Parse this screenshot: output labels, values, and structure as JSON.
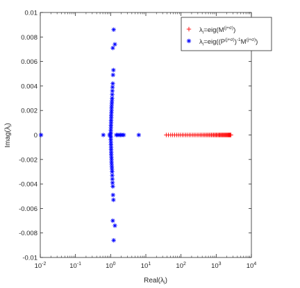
{
  "chart_data": {
    "type": "scatter",
    "title": "",
    "xlabel": "Real(λ_i)",
    "ylabel": "Imag(λ_i)",
    "xscale": "log",
    "xlim": [
      0.01,
      10000
    ],
    "ylim": [
      -0.01,
      0.01
    ],
    "grid": false,
    "legend_position": "top-right",
    "x_ticks": [
      {
        "value": 0.01,
        "base": "10",
        "exp": "-2"
      },
      {
        "value": 0.1,
        "base": "10",
        "exp": "-1"
      },
      {
        "value": 1,
        "base": "10",
        "exp": "0"
      },
      {
        "value": 10,
        "base": "10",
        "exp": "1"
      },
      {
        "value": 100,
        "base": "10",
        "exp": "2"
      },
      {
        "value": 1000,
        "base": "10",
        "exp": "3"
      },
      {
        "value": 10000,
        "base": "10",
        "exp": "4"
      }
    ],
    "y_ticks": [
      {
        "value": 0.01,
        "label": "0.01"
      },
      {
        "value": 0.008,
        "label": "0.008"
      },
      {
        "value": 0.006,
        "label": "0.006"
      },
      {
        "value": 0.004,
        "label": "0.004"
      },
      {
        "value": 0.002,
        "label": "0.002"
      },
      {
        "value": 0,
        "label": "0"
      },
      {
        "value": -0.002,
        "label": "-0.002"
      },
      {
        "value": -0.004,
        "label": "-0.004"
      },
      {
        "value": -0.006,
        "label": "-0.006"
      },
      {
        "value": -0.008,
        "label": "-0.008"
      },
      {
        "value": -0.01,
        "label": "-0.01"
      }
    ],
    "series": [
      {
        "name": "λ_i=eig(M^(j+σ))",
        "legend_parts": {
          "lam": "λ",
          "sub": "i",
          "eq": "=eig(M",
          "sup": "(j+σ)",
          "close": ")"
        },
        "marker": "+",
        "color": "#ff0000",
        "points": [
          [
            38,
            0
          ],
          [
            44,
            0
          ],
          [
            51,
            0
          ],
          [
            58,
            0
          ],
          [
            66,
            0
          ],
          [
            75,
            0
          ],
          [
            85,
            0
          ],
          [
            96,
            0
          ],
          [
            108,
            0
          ],
          [
            121,
            0
          ],
          [
            136,
            0
          ],
          [
            152,
            0
          ],
          [
            170,
            0
          ],
          [
            190,
            0
          ],
          [
            212,
            0
          ],
          [
            236,
            0
          ],
          [
            262,
            0
          ],
          [
            290,
            0
          ],
          [
            320,
            0
          ],
          [
            352,
            0
          ],
          [
            386,
            0
          ],
          [
            422,
            0
          ],
          [
            460,
            0
          ],
          [
            500,
            0
          ],
          [
            542,
            0
          ],
          [
            586,
            0
          ],
          [
            632,
            0
          ],
          [
            680,
            0
          ],
          [
            730,
            0
          ],
          [
            782,
            0
          ],
          [
            836,
            0
          ],
          [
            892,
            0
          ],
          [
            950,
            0
          ],
          [
            1010,
            0
          ],
          [
            1072,
            0
          ],
          [
            1136,
            0
          ],
          [
            1202,
            0
          ],
          [
            1270,
            0
          ],
          [
            1340,
            0
          ],
          [
            1412,
            0
          ],
          [
            1486,
            0
          ],
          [
            1562,
            0
          ],
          [
            1640,
            0
          ],
          [
            1720,
            0
          ],
          [
            1802,
            0
          ],
          [
            1886,
            0
          ],
          [
            1972,
            0
          ],
          [
            2060,
            0
          ],
          [
            2150,
            0
          ],
          [
            2242,
            0
          ],
          [
            2336,
            0
          ],
          [
            2432,
            0
          ],
          [
            2530,
            0
          ],
          [
            2630,
            0
          ]
        ]
      },
      {
        "name": "λ_i=eig((P^(j+σ))^-1 M^(j+σ))",
        "legend_parts": {
          "lam": "λ",
          "sub": "i",
          "eq": "=eig((P",
          "sup": "(j+σ)",
          "mid": ")",
          "sup2": "-1",
          "m": "M",
          "sup3": "(j+σ)",
          "close": ")"
        },
        "marker": "*",
        "color": "#0000ff",
        "points": [
          [
            0.0105,
            0
          ],
          [
            0.62,
            0
          ],
          [
            0.93,
            0
          ],
          [
            1.45,
            0
          ],
          [
            1.6,
            0
          ],
          [
            1.75,
            0
          ],
          [
            1.9,
            0
          ],
          [
            2.1,
            0
          ],
          [
            2.35,
            0
          ],
          [
            6.3,
            0
          ],
          [
            1.22,
            0.0086
          ],
          [
            1.32,
            0.0074
          ],
          [
            1.15,
            0.0071
          ],
          [
            1.2,
            0.0053
          ],
          [
            1.17,
            0.0049
          ],
          [
            1.15,
            0.0042
          ],
          [
            1.13,
            0.0039
          ],
          [
            1.12,
            0.0036
          ],
          [
            1.11,
            0.0033
          ],
          [
            1.1,
            0.003
          ],
          [
            1.09,
            0.0028
          ],
          [
            1.08,
            0.0026
          ],
          [
            1.07,
            0.0024
          ],
          [
            1.06,
            0.0022
          ],
          [
            1.06,
            0.002
          ],
          [
            1.05,
            0.0018
          ],
          [
            1.04,
            0.0016
          ],
          [
            1.04,
            0.0014
          ],
          [
            1.03,
            0.0012
          ],
          [
            1.03,
            0.001
          ],
          [
            1.02,
            0.0008
          ],
          [
            1.02,
            0.0006
          ],
          [
            1.01,
            0.0004
          ],
          [
            1.01,
            0.0002
          ],
          [
            1.0,
            0.0001
          ],
          [
            1.22,
            -0.0086
          ],
          [
            1.32,
            -0.0074
          ],
          [
            1.15,
            -0.007
          ],
          [
            1.2,
            -0.0053
          ],
          [
            1.17,
            -0.0049
          ],
          [
            1.15,
            -0.0042
          ],
          [
            1.13,
            -0.0039
          ],
          [
            1.12,
            -0.0036
          ],
          [
            1.11,
            -0.0033
          ],
          [
            1.1,
            -0.003
          ],
          [
            1.09,
            -0.0028
          ],
          [
            1.08,
            -0.0026
          ],
          [
            1.07,
            -0.0024
          ],
          [
            1.06,
            -0.0022
          ],
          [
            1.06,
            -0.002
          ],
          [
            1.05,
            -0.0018
          ],
          [
            1.04,
            -0.0016
          ],
          [
            1.04,
            -0.0014
          ],
          [
            1.03,
            -0.0012
          ],
          [
            1.03,
            -0.001
          ],
          [
            1.02,
            -0.0008
          ],
          [
            1.02,
            -0.0006
          ],
          [
            1.01,
            -0.0004
          ],
          [
            1.01,
            -0.0002
          ],
          [
            1.0,
            -0.0001
          ]
        ]
      }
    ]
  }
}
